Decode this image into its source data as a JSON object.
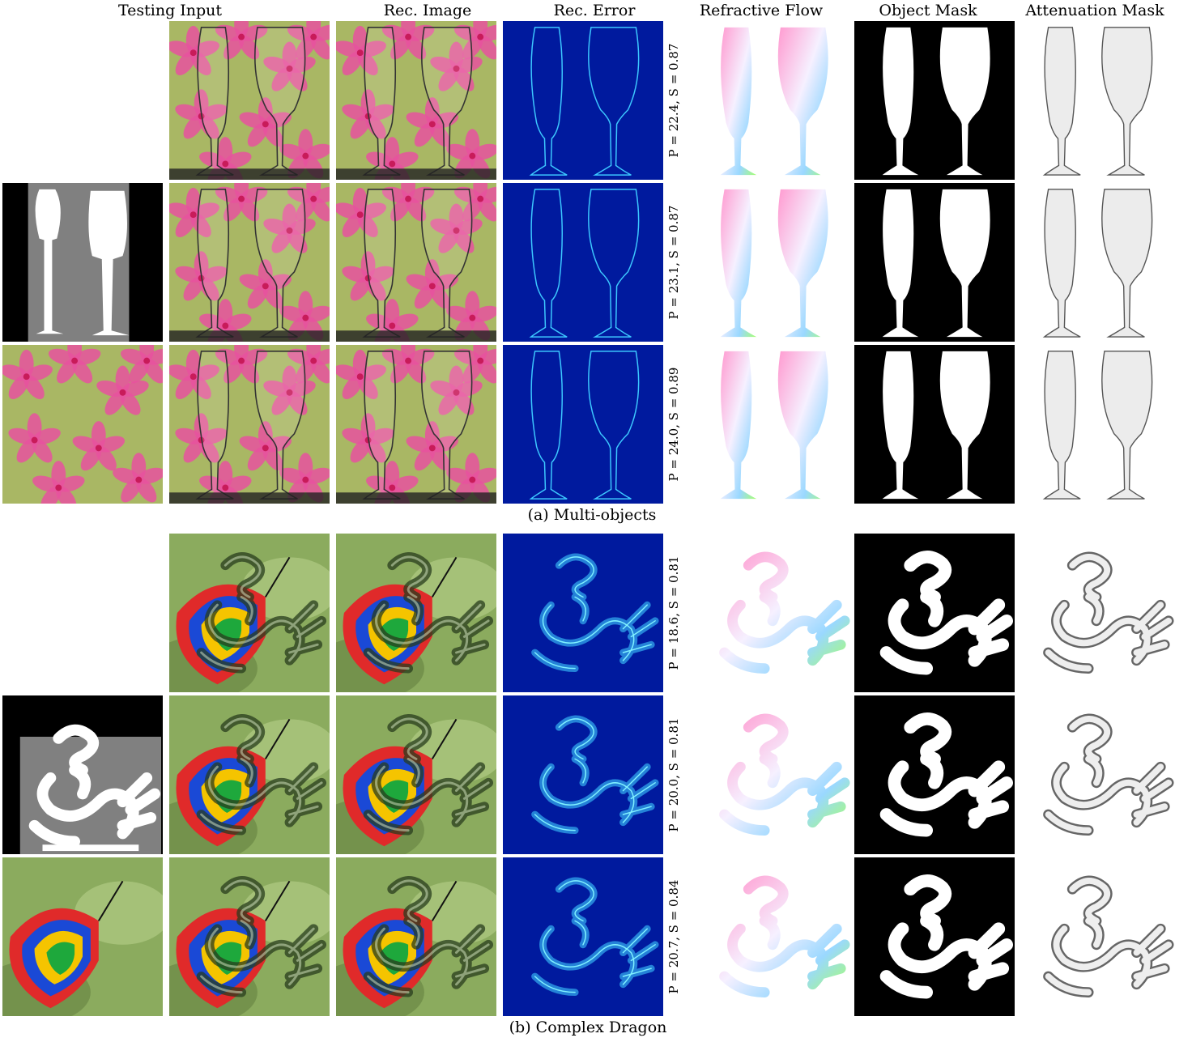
{
  "headers": [
    "Testing Input",
    "Rec. Image",
    "Rec. Error",
    "Refractive Flow",
    "Object Mask",
    "Attenuation Mask"
  ],
  "sections": [
    {
      "caption": "(a) Multi-objects",
      "object": "glasses",
      "rows": [
        {
          "metric": "P = 22.4, S = 0.87",
          "input": "none"
        },
        {
          "metric": "P = 23.1, S = 0.87",
          "input": "mask"
        },
        {
          "metric": "P = 24.0, S = 0.89",
          "input": "background"
        }
      ]
    },
    {
      "caption": "(b) Complex Dragon",
      "object": "dragon",
      "rows": [
        {
          "metric": "P = 18.6, S = 0.81",
          "input": "none"
        },
        {
          "metric": "P = 20.0, S = 0.81",
          "input": "mask"
        },
        {
          "metric": "P = 20.7, S = 0.84",
          "input": "background"
        }
      ]
    }
  ],
  "colors": {
    "flower_bg": "#a9b764",
    "petal": "#e8529f",
    "butterfly_bg": "#8bab5e",
    "error_bg": "#001a9e",
    "mask_gray": "#808080"
  }
}
